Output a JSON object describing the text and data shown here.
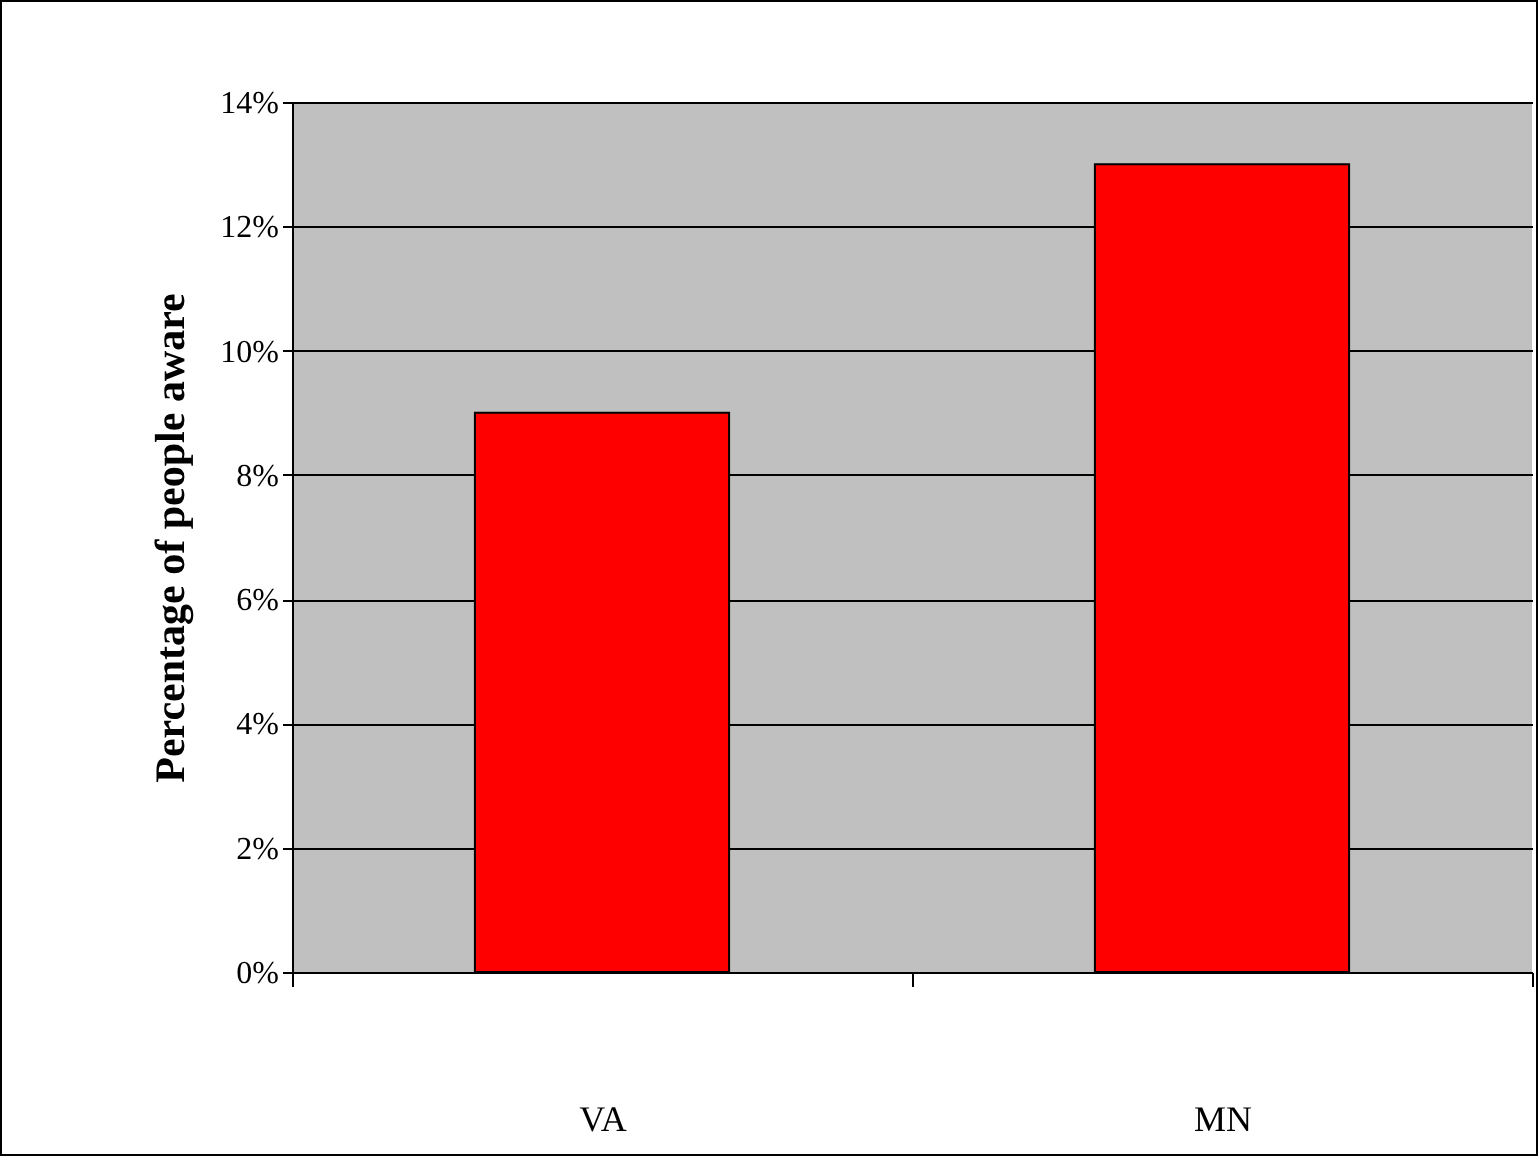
{
  "chart_data": {
    "type": "bar",
    "ylabel": "Percentage of people aware",
    "categories": [
      "VA",
      "MN"
    ],
    "values": [
      9,
      13
    ],
    "color": "#ff0000",
    "ylim": [
      0,
      14
    ],
    "yticks": [
      {
        "value": 0,
        "label": "0%"
      },
      {
        "value": 2,
        "label": "2%"
      },
      {
        "value": 4,
        "label": "4%"
      },
      {
        "value": 6,
        "label": "6%"
      },
      {
        "value": 8,
        "label": "8%"
      },
      {
        "value": 10,
        "label": "10%"
      },
      {
        "value": 12,
        "label": "12%"
      },
      {
        "value": 14,
        "label": "14%"
      }
    ],
    "grid": "y"
  }
}
